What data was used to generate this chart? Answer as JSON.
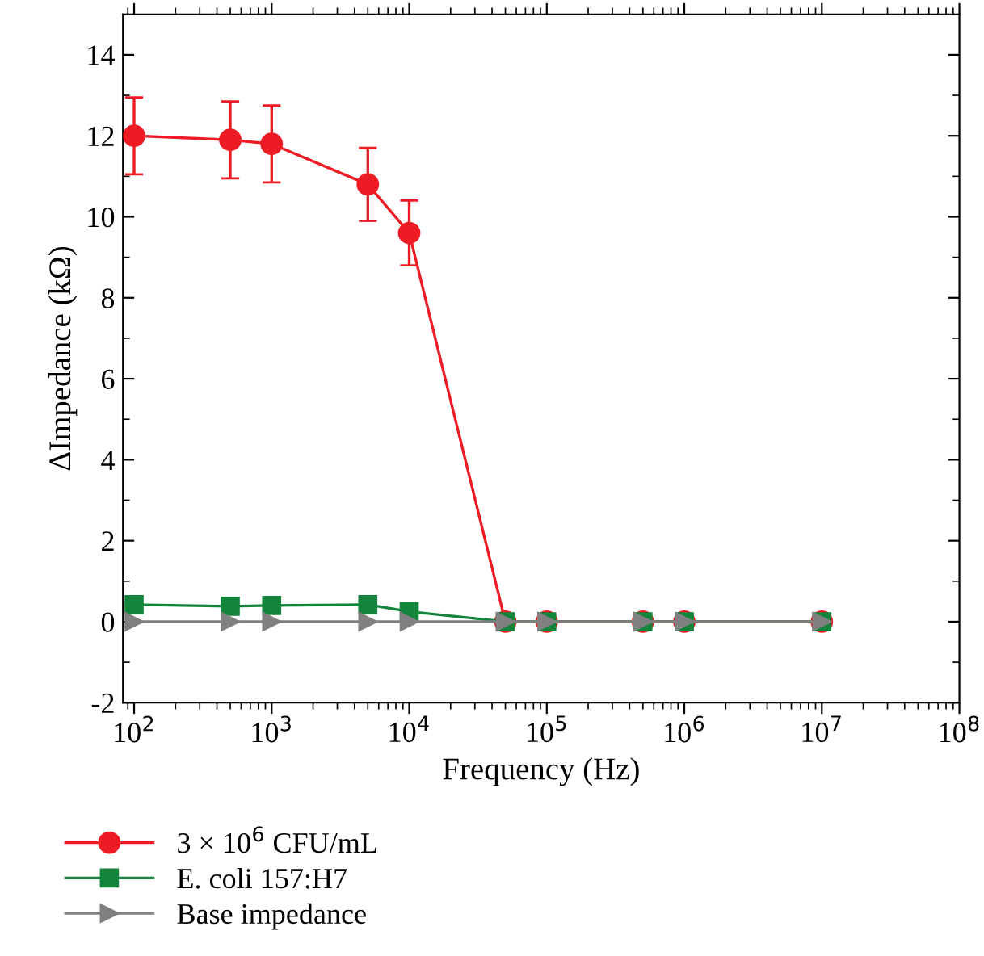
{
  "chart_data": {
    "type": "line",
    "xlabel": "Frequency (Hz)",
    "ylabel": "ΔImpedance (kΩ)",
    "log": "x",
    "xlim": [
      83,
      100000000
    ],
    "xticks": [
      {
        "value": 100,
        "label": "10$^{2}$"
      },
      {
        "value": 1000,
        "label": "10$^{3}$"
      },
      {
        "value": 10000,
        "label": "10$^{4}$"
      },
      {
        "value": 100000,
        "label": "10$^{5}$"
      },
      {
        "value": 1000000,
        "label": "10$^{6}$"
      },
      {
        "value": 10000000,
        "label": "10$^{7}$"
      },
      {
        "value": 100000000,
        "label": "10$^{8}$"
      }
    ],
    "ylim": [
      -2,
      15
    ],
    "yticks": [
      -2,
      0,
      2,
      4,
      6,
      8,
      10,
      12,
      14
    ],
    "grid": false,
    "legend": "bottom",
    "x": [
      100,
      500,
      1000,
      5000,
      10000,
      50000,
      100000,
      500000,
      1000000,
      10000000
    ],
    "series": [
      {
        "name": "3 × 10$^{6}$ CFU/mL",
        "color": "#ed1c24",
        "marker": "circle",
        "values": [
          12.0,
          11.9,
          11.8,
          10.8,
          9.6,
          0,
          0,
          0,
          0,
          0
        ],
        "errors": [
          0.95,
          0.95,
          0.95,
          0.9,
          0.8,
          null,
          null,
          null,
          null,
          null
        ]
      },
      {
        "name": "E. coli 157:H7",
        "color": "#13843b",
        "marker": "square",
        "values": [
          0.42,
          0.38,
          0.4,
          0.42,
          0.25,
          0,
          0,
          0,
          0,
          0
        ]
      },
      {
        "name": "Base impedance",
        "color": "#808080",
        "marker": "triangle",
        "values": [
          0,
          0,
          0,
          0,
          0,
          0,
          0,
          0,
          0,
          0
        ]
      }
    ]
  }
}
